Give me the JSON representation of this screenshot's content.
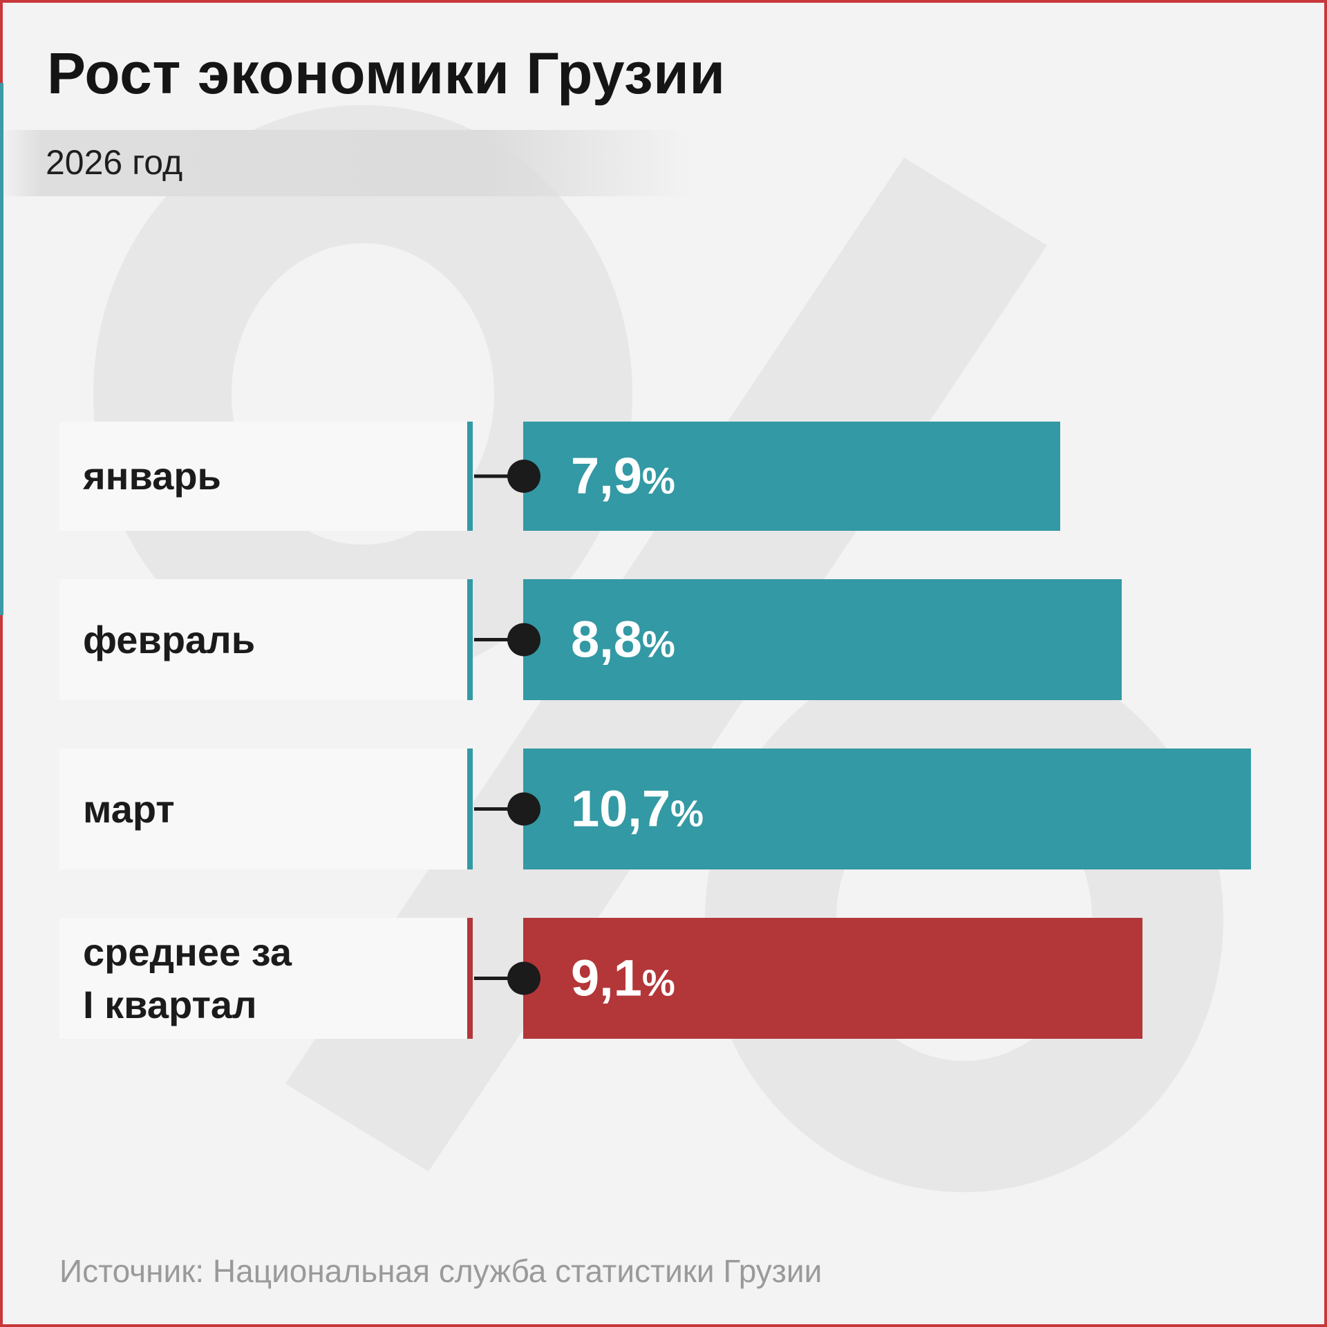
{
  "title": "Рост экономики Грузии",
  "subtitle": "2026 год",
  "source": "Источник: Национальная служба статистики Грузии",
  "colors": {
    "monthly": "#3399a4",
    "average": "#b33639",
    "background": "#f3f3f3",
    "label_bg": "#f8f8f8",
    "frame": "#c8373a"
  },
  "chart_data": {
    "type": "bar",
    "orientation": "horizontal",
    "unit": "%",
    "categories": [
      "январь",
      "февраль",
      "март",
      "среднее за\nI квартал"
    ],
    "values": [
      7.9,
      8.8,
      10.7,
      9.1
    ],
    "value_labels": [
      "7,9",
      "8,8",
      "10,7",
      "9,1"
    ],
    "bar_colors": [
      "#3399a4",
      "#3399a4",
      "#3399a4",
      "#b33639"
    ],
    "title": "Рост экономики Грузии",
    "subtitle": "2026 год",
    "xlabel": "",
    "ylabel": "",
    "grid": false,
    "legend": "none"
  }
}
